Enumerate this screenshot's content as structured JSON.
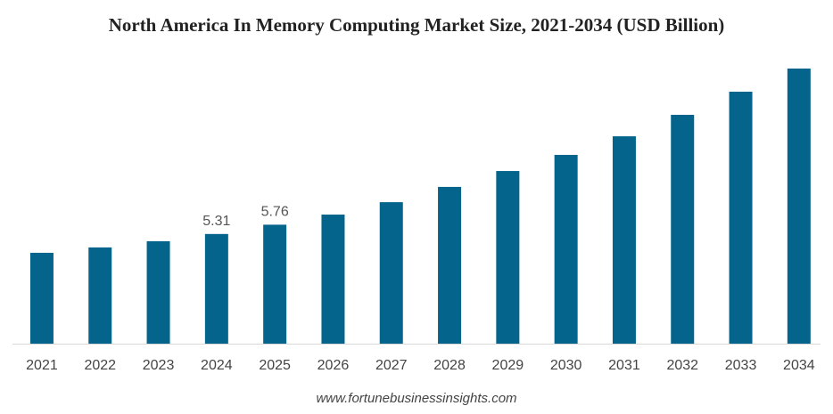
{
  "chart_data": {
    "type": "bar",
    "title": "North America In Memory Computing Market Size, 2021-2034 (USD Billion)",
    "categories": [
      "2021",
      "2022",
      "2023",
      "2024",
      "2025",
      "2026",
      "2027",
      "2028",
      "2029",
      "2030",
      "2031",
      "2032",
      "2033",
      "2034"
    ],
    "values": [
      4.4,
      4.66,
      4.96,
      5.31,
      5.76,
      6.25,
      6.85,
      7.59,
      8.36,
      9.14,
      10.04,
      11.08,
      12.2,
      13.32
    ],
    "value_labels": [
      null,
      null,
      null,
      "5.31",
      "5.76",
      null,
      null,
      null,
      null,
      null,
      null,
      null,
      null,
      null
    ],
    "color": "#05648c",
    "source": "www.fortunebusinessinsights.com"
  }
}
